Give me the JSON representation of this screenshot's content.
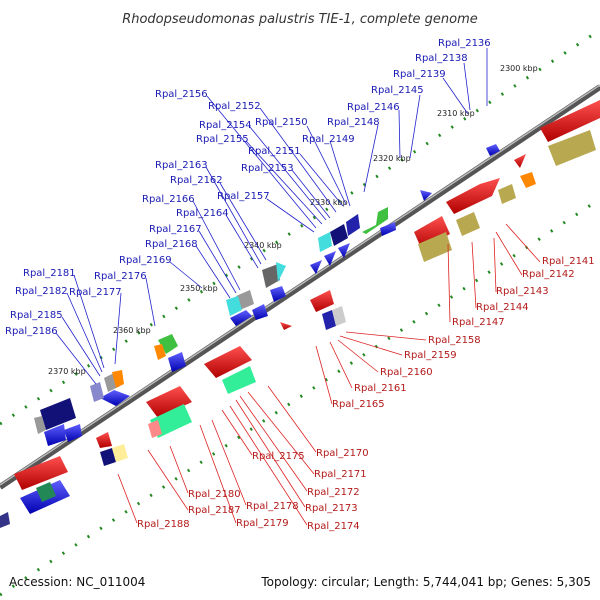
{
  "title": "Rhodopseudomonas palustris TIE-1, complete genome",
  "accession": "Accession: NC_011004",
  "topology": "Topology: circular; Length: 5,744,041 bp; Genes: 5,305",
  "tick_labels": [
    "2300 kbp",
    "2310 kbp",
    "2320 kbp",
    "2330 kbp",
    "2340 kbp",
    "2350 kbp",
    "2360 kbp",
    "2370 kbp"
  ],
  "forward_gene_labels": [
    "Rpal_2136",
    "Rpal_2138",
    "Rpal_2139",
    "Rpal_2145",
    "Rpal_2146",
    "Rpal_2148",
    "Rpal_2149",
    "Rpal_2150",
    "Rpal_2151",
    "Rpal_2152",
    "Rpal_2153",
    "Rpal_2154",
    "Rpal_2155",
    "Rpal_2156",
    "Rpal_2157",
    "Rpal_2162",
    "Rpal_2163",
    "Rpal_2164",
    "Rpal_2166",
    "Rpal_2167",
    "Rpal_2168",
    "Rpal_2169",
    "Rpal_2176",
    "Rpal_2177",
    "Rpal_2181",
    "Rpal_2182",
    "Rpal_2185",
    "Rpal_2186"
  ],
  "reverse_gene_labels": [
    "Rpal_2141",
    "Rpal_2142",
    "Rpal_2143",
    "Rpal_2144",
    "Rpal_2147",
    "Rpal_2158",
    "Rpal_2159",
    "Rpal_2160",
    "Rpal_2161",
    "Rpal_2165",
    "Rpal_2170",
    "Rpal_2171",
    "Rpal_2172",
    "Rpal_2173",
    "Rpal_2174",
    "Rpal_2175",
    "Rpal_2178",
    "Rpal_2179",
    "Rpal_2180",
    "Rpal_2187",
    "Rpal_2188"
  ],
  "colors": {
    "forward_gene": "#1010e0",
    "reverse_gene": "#e01010",
    "backbone": "#777777",
    "tick": "#228822",
    "forward_label": "#1a1ab4",
    "reverse_label": "#b41a1a"
  }
}
